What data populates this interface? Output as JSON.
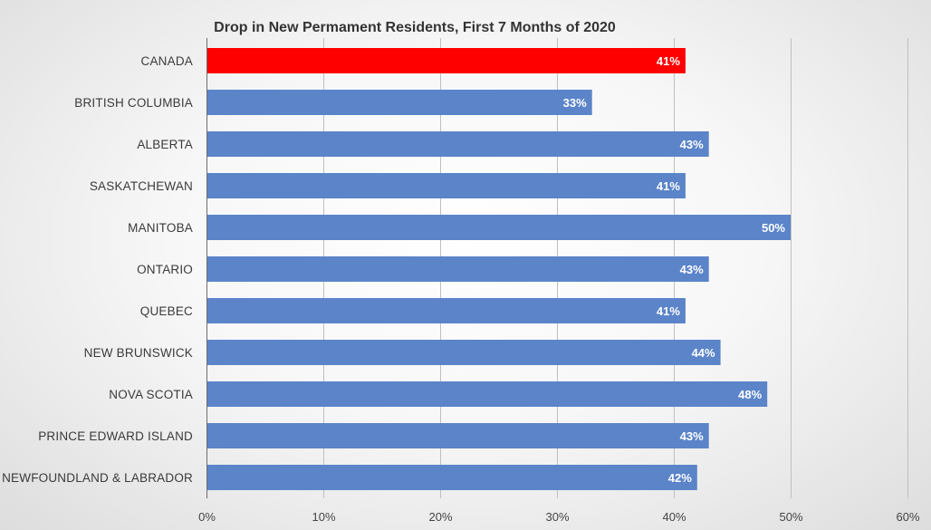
{
  "chart_data": {
    "type": "bar",
    "orientation": "horizontal",
    "title": "Drop in New Permament Residents, First 7 Months of 2020",
    "categories": [
      "CANADA",
      "BRITISH COLUMBIA",
      "ALBERTA",
      "SASKATCHEWAN",
      "MANITOBA",
      "ONTARIO",
      "QUEBEC",
      "NEW BRUNSWICK",
      "NOVA SCOTIA",
      "PRINCE EDWARD ISLAND",
      "NEWFOUNDLAND & LABRADOR"
    ],
    "values": [
      41,
      33,
      43,
      41,
      50,
      43,
      41,
      44,
      48,
      43,
      42
    ],
    "data_labels": [
      "41%",
      "33%",
      "43%",
      "41%",
      "50%",
      "43%",
      "41%",
      "44%",
      "48%",
      "43%",
      "42%"
    ],
    "xlim": [
      0,
      60
    ],
    "xticks": [
      0,
      10,
      20,
      30,
      40,
      50,
      60
    ],
    "xtick_labels": [
      "0%",
      "10%",
      "20%",
      "30%",
      "40%",
      "50%",
      "60%"
    ],
    "xlabel": "",
    "ylabel": "",
    "grid": "vertical",
    "legend": "none",
    "colors": {
      "default_bar": "#5b84c9",
      "highlight_bar": "#ff0000",
      "highlight_category": "CANADA"
    }
  }
}
